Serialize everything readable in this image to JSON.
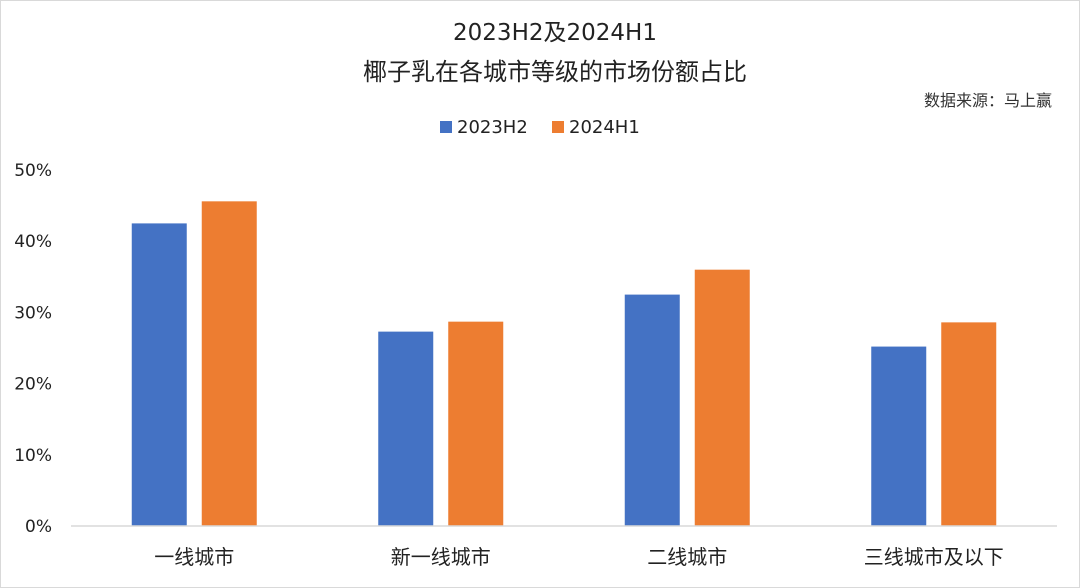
{
  "chart_data": {
    "type": "bar",
    "title_line1": "2023H2及2024H1",
    "title_line2": "椰子乳在各城市等级的市场份额占比",
    "source": "数据来源：马上赢",
    "categories": [
      "一线城市",
      "新一线城市",
      "二线城市",
      "三线城市及以下"
    ],
    "series": [
      {
        "name": "2023H2",
        "color": "#4472C4",
        "values": [
          42.5,
          27.3,
          32.5,
          25.2
        ]
      },
      {
        "name": "2024H1",
        "color": "#ED7D31",
        "values": [
          45.6,
          28.7,
          36.0,
          28.6
        ]
      }
    ],
    "ylim": [
      0,
      50
    ],
    "yticks": [
      0,
      10,
      20,
      30,
      40,
      50
    ],
    "ytick_labels": [
      "0%",
      "10%",
      "20%",
      "30%",
      "40%",
      "50%"
    ],
    "grid": false,
    "legend_position": "top-center"
  }
}
